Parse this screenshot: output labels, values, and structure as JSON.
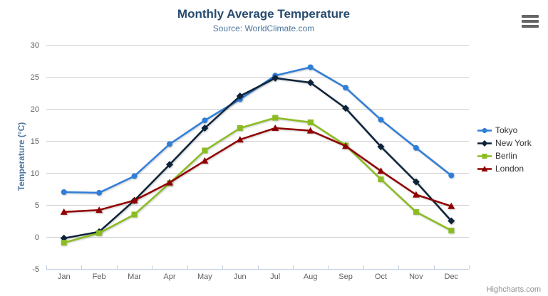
{
  "chart_data": {
    "type": "line",
    "title": "Monthly Average Temperature",
    "subtitle": "Source: WorldClimate.com",
    "ylabel": "Temperature (°C)",
    "xlabel": "",
    "ylim": [
      -5,
      30
    ],
    "ytick_step": 5,
    "grid": true,
    "legend_position": "right",
    "categories": [
      "Jan",
      "Feb",
      "Mar",
      "Apr",
      "May",
      "Jun",
      "Jul",
      "Aug",
      "Sep",
      "Oct",
      "Nov",
      "Dec"
    ],
    "series": [
      {
        "name": "Tokyo",
        "color": "#2f7ed8",
        "marker": "circle",
        "values": [
          7.0,
          6.9,
          9.5,
          14.5,
          18.2,
          21.5,
          25.2,
          26.5,
          23.3,
          18.3,
          13.9,
          9.6
        ]
      },
      {
        "name": "New York",
        "color": "#0d233a",
        "marker": "diamond",
        "values": [
          -0.2,
          0.8,
          5.7,
          11.3,
          17.0,
          22.0,
          24.8,
          24.1,
          20.1,
          14.1,
          8.6,
          2.5
        ]
      },
      {
        "name": "Berlin",
        "color": "#8bbc21",
        "marker": "square",
        "values": [
          -0.9,
          0.6,
          3.5,
          8.4,
          13.5,
          17.0,
          18.6,
          17.9,
          14.3,
          9.0,
          3.9,
          1.0
        ]
      },
      {
        "name": "London",
        "color": "#910000",
        "marker": "triangle",
        "values": [
          3.9,
          4.2,
          5.7,
          8.5,
          11.9,
          15.2,
          17.0,
          16.6,
          14.2,
          10.3,
          6.6,
          4.8
        ]
      }
    ],
    "colors": {
      "title": "#274b6d",
      "subtitle": "#4d759e",
      "axis_title": "#4d759e",
      "tick_label": "#606060",
      "gridline": "#d0d0d0",
      "axis_line": "#c0d0e0",
      "legend_text": "#333333",
      "credits_text": "#909090",
      "menu_icon": "#666666"
    }
  },
  "credits": {
    "label": "Highcharts.com"
  }
}
